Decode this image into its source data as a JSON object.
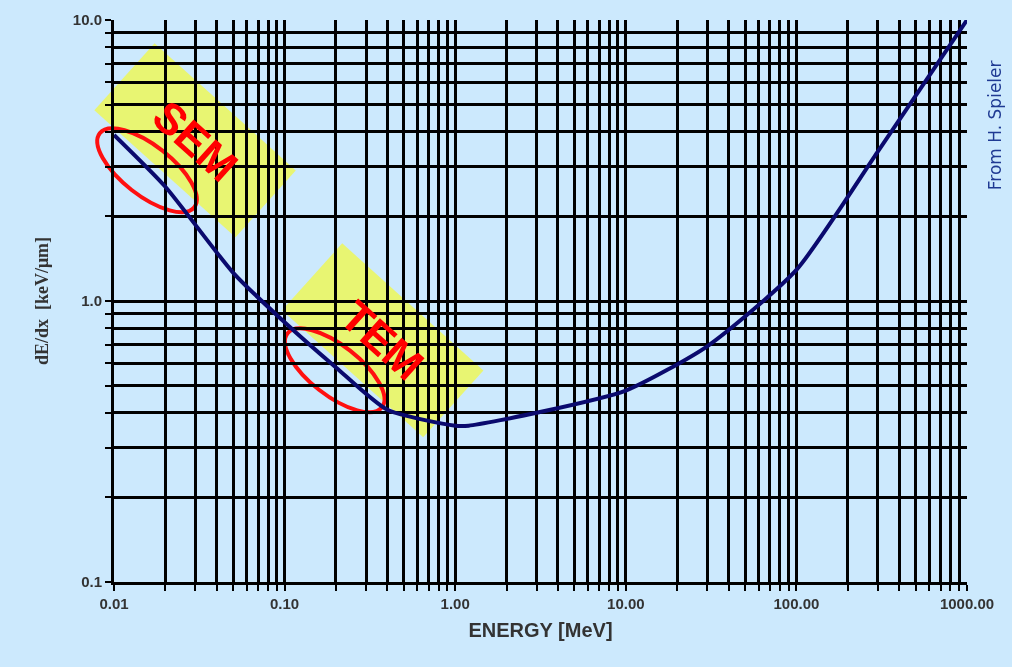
{
  "chart_data": {
    "type": "line",
    "xlabel": "ENERGY [MeV]",
    "ylabel": "dE/dx  [keV/μm]",
    "log": "xy",
    "grid": true,
    "marker": "none",
    "line_style": "solid",
    "x": [
      0.01,
      0.02,
      0.05,
      0.1,
      0.2,
      0.4,
      1,
      1.2,
      3,
      10,
      30,
      100,
      300,
      1000
    ],
    "series": [
      {
        "color": "#0a0a6e",
        "values": [
          3.9,
          2.55,
          1.26,
          0.84,
          0.58,
          0.41,
          0.36,
          0.36,
          0.4,
          0.48,
          0.69,
          1.29,
          3.4,
          10
        ]
      }
    ],
    "xlim": [
      0.01,
      1000
    ],
    "ylim": [
      0.1,
      10
    ],
    "xticks": [
      {
        "value": 0.01,
        "label": "0.01"
      },
      {
        "value": 0.02,
        "label": null
      },
      {
        "value": 0.03,
        "label": null
      },
      {
        "value": 0.04,
        "label": null
      },
      {
        "value": 0.05,
        "label": null
      },
      {
        "value": 0.06,
        "label": null
      },
      {
        "value": 0.07,
        "label": null
      },
      {
        "value": 0.08,
        "label": null
      },
      {
        "value": 0.09,
        "label": null
      },
      {
        "value": 0.1,
        "label": "0.10"
      },
      {
        "value": 0.2,
        "label": null
      },
      {
        "value": 0.3,
        "label": null
      },
      {
        "value": 0.4,
        "label": null
      },
      {
        "value": 0.5,
        "label": null
      },
      {
        "value": 0.6,
        "label": null
      },
      {
        "value": 0.7,
        "label": null
      },
      {
        "value": 0.8,
        "label": null
      },
      {
        "value": 0.9,
        "label": null
      },
      {
        "value": 1,
        "label": "1.00"
      },
      {
        "value": 2,
        "label": null
      },
      {
        "value": 3,
        "label": null
      },
      {
        "value": 4,
        "label": null
      },
      {
        "value": 5,
        "label": null
      },
      {
        "value": 6,
        "label": null
      },
      {
        "value": 7,
        "label": null
      },
      {
        "value": 8,
        "label": null
      },
      {
        "value": 9,
        "label": null
      },
      {
        "value": 10,
        "label": "10.00"
      },
      {
        "value": 20,
        "label": null
      },
      {
        "value": 30,
        "label": null
      },
      {
        "value": 40,
        "label": null
      },
      {
        "value": 50,
        "label": null
      },
      {
        "value": 60,
        "label": null
      },
      {
        "value": 70,
        "label": null
      },
      {
        "value": 80,
        "label": null
      },
      {
        "value": 90,
        "label": null
      },
      {
        "value": 100,
        "label": "100.00"
      },
      {
        "value": 200,
        "label": null
      },
      {
        "value": 300,
        "label": null
      },
      {
        "value": 400,
        "label": null
      },
      {
        "value": 500,
        "label": null
      },
      {
        "value": 600,
        "label": null
      },
      {
        "value": 700,
        "label": null
      },
      {
        "value": 800,
        "label": null
      },
      {
        "value": 900,
        "label": null
      },
      {
        "value": 1000,
        "label": "1000.00"
      }
    ],
    "yticks": [
      0.1,
      {
        "value": 0.2,
        "label": null
      },
      {
        "value": 0.3,
        "label": null
      },
      {
        "value": 0.4,
        "label": null
      },
      {
        "value": 0.5,
        "label": null
      },
      {
        "value": 0.6,
        "label": null
      },
      {
        "value": 0.7,
        "label": null
      },
      {
        "value": 0.8,
        "label": null
      },
      {
        "value": 0.9,
        "label": null
      },
      {
        "value": 1,
        "label": "1.0"
      },
      {
        "value": 2,
        "label": null
      },
      {
        "value": 3,
        "label": null
      },
      {
        "value": 4,
        "label": null
      },
      {
        "value": 5,
        "label": null
      },
      {
        "value": 6,
        "label": null
      },
      {
        "value": 7,
        "label": null
      },
      {
        "value": 8,
        "label": null
      },
      {
        "value": 9,
        "label": null
      },
      {
        "value": 10,
        "label": "10.0"
      }
    ],
    "annotations": [
      "SEM",
      "TEM",
      "From H. Spieler"
    ]
  }
}
